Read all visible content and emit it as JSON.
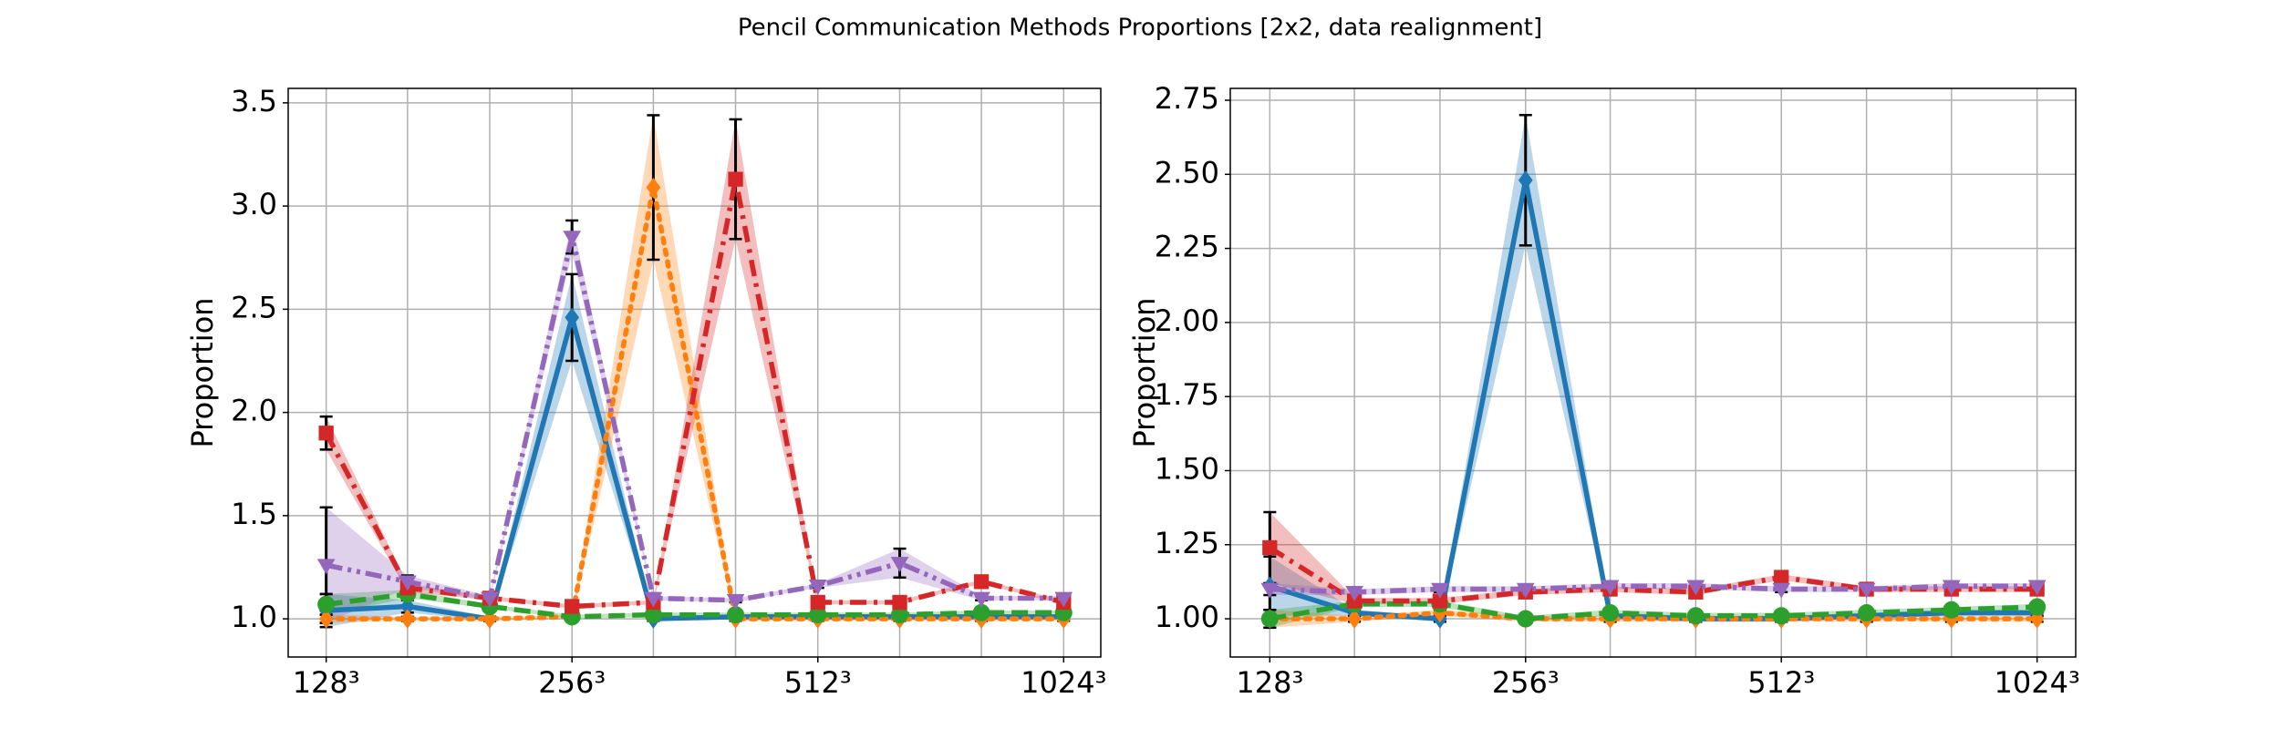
{
  "title": "Pencil Communication Methods Proportions [2x2, data realignment]",
  "chart_data": [
    {
      "type": "line",
      "ylabel": "Proportion",
      "xscale": "log",
      "grid": true,
      "x": [
        128,
        161,
        203,
        256,
        322,
        406,
        512,
        645,
        812,
        1024
      ],
      "xlim": [
        115,
        1137
      ],
      "xticks": [
        {
          "value": 128,
          "label": "128³"
        },
        {
          "value": 256,
          "label": "256³"
        },
        {
          "value": 512,
          "label": "512³"
        },
        {
          "value": 1024,
          "label": "1024³"
        }
      ],
      "xminorticks": [
        161,
        203,
        322,
        406,
        645,
        812
      ],
      "ylim": [
        0.815,
        3.57
      ],
      "yticks": [
        {
          "value": 1.0,
          "label": "1.0"
        },
        1.5,
        {
          "value": 2.0,
          "label": "2.0"
        },
        2.5,
        {
          "value": 3.0,
          "label": "3.0"
        },
        3.5
      ],
      "series": [
        {
          "color": "#1f77b4",
          "linestyle": "solid",
          "marker": "diamond",
          "values": [
            1.04,
            1.06,
            1.0,
            2.46,
            1.0,
            1.01,
            1.01,
            1.01,
            1.01,
            1.01
          ],
          "errors": [
            0.08,
            0.03,
            0.01,
            0.21,
            0.01,
            0.01,
            0.01,
            0.01,
            0.01,
            0.01
          ]
        },
        {
          "color": "#ff7f0e",
          "linestyle": "dotted",
          "marker": "diamond",
          "values": [
            1.0,
            1.0,
            1.0,
            1.01,
            3.09,
            1.0,
            1.0,
            1.0,
            1.0,
            1.0
          ],
          "errors": [
            0.02,
            0.01,
            0.01,
            0.01,
            0.35,
            0.01,
            0.01,
            0.01,
            0.01,
            0.01
          ]
        },
        {
          "color": "#2ca02c",
          "linestyle": "dashed",
          "marker": "circle",
          "values": [
            1.07,
            1.12,
            1.06,
            1.01,
            1.02,
            1.02,
            1.02,
            1.02,
            1.03,
            1.03
          ],
          "errors": [
            0.05,
            0.02,
            0.01,
            0.01,
            0.01,
            0.01,
            0.01,
            0.01,
            0.01,
            0.01
          ]
        },
        {
          "color": "#d62728",
          "linestyle": "dashdot",
          "marker": "square",
          "values": [
            1.9,
            1.15,
            1.1,
            1.06,
            1.08,
            3.13,
            1.08,
            1.08,
            1.18,
            1.08
          ],
          "errors": [
            0.08,
            0.02,
            0.01,
            0.01,
            0.01,
            0.29,
            0.01,
            0.01,
            0.01,
            0.01
          ]
        },
        {
          "color": "#9467bd",
          "linestyle": "dashdotdot",
          "marker": "triangle-down",
          "values": [
            1.26,
            1.18,
            1.1,
            2.85,
            1.1,
            1.09,
            1.16,
            1.27,
            1.1,
            1.1
          ],
          "errors": [
            0.28,
            0.03,
            0.01,
            0.08,
            0.01,
            0.01,
            0.01,
            0.07,
            0.01,
            0.01
          ]
        }
      ]
    },
    {
      "type": "line",
      "ylabel": "Proportion",
      "xscale": "log",
      "grid": true,
      "x": [
        128,
        161,
        203,
        256,
        322,
        406,
        512,
        645,
        812,
        1024
      ],
      "xlim": [
        115,
        1137
      ],
      "xticks": [
        {
          "value": 128,
          "label": "128³"
        },
        {
          "value": 256,
          "label": "256³"
        },
        {
          "value": 512,
          "label": "512³"
        },
        {
          "value": 1024,
          "label": "1024³"
        }
      ],
      "xminorticks": [
        161,
        203,
        322,
        406,
        645,
        812
      ],
      "ylim": [
        0.871,
        2.79
      ],
      "yticks": [
        {
          "value": 1.0,
          "label": "1.00"
        },
        1.25,
        {
          "value": 1.5,
          "label": "1.50"
        },
        1.75,
        {
          "value": 2.0,
          "label": "2.00"
        },
        2.25,
        {
          "value": 2.5,
          "label": "2.50"
        },
        2.75
      ],
      "series": [
        {
          "color": "#1f77b4",
          "linestyle": "solid",
          "marker": "diamond",
          "values": [
            1.11,
            1.02,
            1.0,
            2.48,
            1.01,
            1.0,
            1.0,
            1.01,
            1.02,
            1.02
          ],
          "errors": [
            0.1,
            0.01,
            0.01,
            0.22,
            0.01,
            0.01,
            0.01,
            0.01,
            0.01,
            0.01
          ]
        },
        {
          "color": "#ff7f0e",
          "linestyle": "dotted",
          "marker": "diamond",
          "values": [
            1.0,
            1.0,
            1.02,
            1.0,
            1.0,
            1.0,
            1.0,
            1.0,
            1.0,
            1.0
          ],
          "errors": [
            0.03,
            0.01,
            0.01,
            0.01,
            0.01,
            0.01,
            0.01,
            0.01,
            0.01,
            0.01
          ]
        },
        {
          "color": "#2ca02c",
          "linestyle": "dashed",
          "marker": "circle",
          "values": [
            1.0,
            1.05,
            1.05,
            1.0,
            1.02,
            1.01,
            1.01,
            1.02,
            1.03,
            1.04
          ],
          "errors": [
            0.03,
            0.01,
            0.01,
            0.01,
            0.01,
            0.01,
            0.01,
            0.01,
            0.01,
            0.01
          ]
        },
        {
          "color": "#d62728",
          "linestyle": "dashdot",
          "marker": "square",
          "values": [
            1.24,
            1.06,
            1.06,
            1.09,
            1.1,
            1.09,
            1.14,
            1.1,
            1.1,
            1.1
          ],
          "errors": [
            0.12,
            0.01,
            0.01,
            0.01,
            0.01,
            0.01,
            0.01,
            0.01,
            0.01,
            0.01
          ]
        },
        {
          "color": "#9467bd",
          "linestyle": "dashdotdot",
          "marker": "triangle-down",
          "values": [
            1.1,
            1.09,
            1.1,
            1.1,
            1.11,
            1.11,
            1.1,
            1.1,
            1.11,
            1.11
          ],
          "errors": [
            0.02,
            0.01,
            0.01,
            0.01,
            0.01,
            0.01,
            0.01,
            0.01,
            0.01,
            0.01
          ]
        }
      ]
    }
  ]
}
